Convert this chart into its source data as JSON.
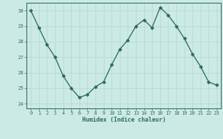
{
  "x": [
    0,
    1,
    2,
    3,
    4,
    5,
    6,
    7,
    8,
    9,
    10,
    11,
    12,
    13,
    14,
    15,
    16,
    17,
    18,
    19,
    20,
    21,
    22,
    23
  ],
  "y": [
    30.0,
    28.9,
    27.8,
    27.0,
    25.8,
    25.0,
    24.4,
    24.6,
    25.1,
    25.4,
    26.5,
    27.5,
    28.1,
    29.0,
    29.4,
    28.9,
    30.2,
    29.7,
    29.0,
    28.2,
    27.2,
    26.4,
    25.4,
    25.2
  ],
  "line_color": "#2e6b5e",
  "bg_color": "#cceae4",
  "grid_color": "#b8d8d2",
  "xlabel": "Humidex (Indice chaleur)",
  "ylim": [
    23.7,
    30.5
  ],
  "xlim": [
    -0.5,
    23.5
  ],
  "yticks": [
    24,
    25,
    26,
    27,
    28,
    29,
    30
  ],
  "xticks": [
    0,
    1,
    2,
    3,
    4,
    5,
    6,
    7,
    8,
    9,
    10,
    11,
    12,
    13,
    14,
    15,
    16,
    17,
    18,
    19,
    20,
    21,
    22,
    23
  ],
  "tick_fontsize": 5.0,
  "xlabel_fontsize": 6.0,
  "marker_size": 2.5,
  "line_width": 1.0
}
